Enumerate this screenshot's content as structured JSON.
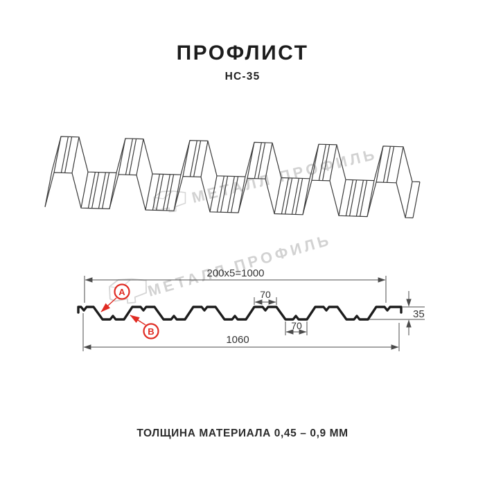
{
  "header": {
    "title": "ПРОФЛИСТ",
    "subtitle": "НС-35"
  },
  "brand_watermark": {
    "text": "МЕТАЛЛ ПРОФИЛЬ"
  },
  "drawing": {
    "dimensions": {
      "coverage_width": "200x5=1000",
      "top_flange_width": "70",
      "bottom_flange_width": "70",
      "overall_width": "1060",
      "profile_height": "35"
    },
    "point_labels": {
      "a": "A",
      "b": "B"
    }
  },
  "footer": {
    "thickness_note": "ТОЛЩИНА МАТЕРИАЛА 0,45 – 0,9 ММ"
  },
  "colors": {
    "accent_red": "#e02b22",
    "profile_line": "#1c1c1c",
    "dim_line": "#4b4b4b",
    "watermark_gray": "#d2d2d2"
  }
}
